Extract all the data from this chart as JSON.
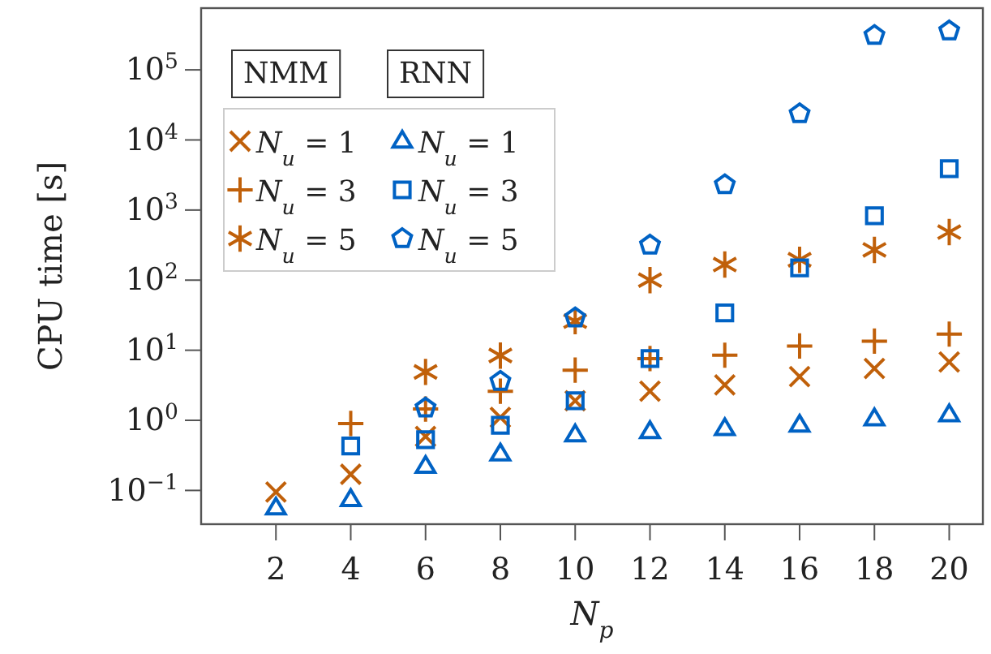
{
  "chart_data": {
    "type": "scatter",
    "xlabel": "N$_{p}$",
    "ylabel": "CPU time [s]",
    "log": "y",
    "legend": "top left",
    "grid": false,
    "xlim": [
      0,
      20.9
    ],
    "xticks": [
      2,
      4,
      6,
      8,
      10,
      12,
      14,
      16,
      18,
      20
    ],
    "ylim": [
      0.033,
      760000
    ],
    "yticks": [
      {
        "value": 0.1,
        "label": "10$^{−1}$"
      },
      {
        "value": 1,
        "label": "10$^{0}$"
      },
      {
        "value": 10,
        "label": "10$^{1}$"
      },
      {
        "value": 100,
        "label": "10$^{2}$"
      },
      {
        "value": 1000,
        "label": "10$^{3}$"
      },
      {
        "value": 10000,
        "label": "10$^{4}$"
      },
      {
        "value": 100000,
        "label": "10$^{5}$"
      }
    ],
    "annotations": [
      "NMM",
      "RNN"
    ],
    "series": [
      {
        "name": "N$_{u}$ = 1",
        "color": "#c0600a",
        "marker": "cross",
        "x": [
          2,
          4,
          6,
          8,
          10,
          12,
          14,
          16,
          18,
          20
        ],
        "values": [
          0.095,
          0.17,
          0.59,
          1.1,
          1.9,
          2.6,
          3.2,
          4.2,
          5.5,
          6.8
        ]
      },
      {
        "name": "N$_{u}$ = 3",
        "color": "#c0600a",
        "marker": "plus",
        "x": [
          4,
          6,
          8,
          10,
          12,
          14,
          16,
          18,
          20
        ],
        "values": [
          0.9,
          1.45,
          2.6,
          5.2,
          7.6,
          8.5,
          11.5,
          13.5,
          17
        ]
      },
      {
        "name": "N$_{u}$ = 5",
        "color": "#c0600a",
        "x": [
          6,
          8,
          10,
          12,
          14,
          16,
          18,
          20
        ],
        "values": [
          4.9,
          8.4,
          26,
          100,
          167,
          195,
          270,
          485
        ]
      },
      {
        "name": "N$_{u}$ = 1",
        "color": "#0062c4",
        "marker": "triangle",
        "x": [
          2,
          4,
          6,
          8,
          10,
          12,
          14,
          16,
          18,
          20
        ],
        "values": [
          0.056,
          0.074,
          0.22,
          0.33,
          0.62,
          0.69,
          0.76,
          0.85,
          1.05,
          1.2
        ]
      },
      {
        "name": "N$_{u}$ = 3",
        "color": "#0062c4",
        "marker": "square",
        "x": [
          4,
          6,
          8,
          10,
          12,
          14,
          16,
          18,
          20
        ],
        "values": [
          0.43,
          0.53,
          0.85,
          1.9,
          7.6,
          34,
          150,
          830,
          3900
        ]
      },
      {
        "name": "N$_{u}$ = 5",
        "color": "#0062c4",
        "x": [
          6,
          8,
          10,
          12,
          14,
          16,
          18,
          20
        ],
        "values": [
          1.5,
          3.6,
          29,
          316,
          2300,
          23700,
          310000,
          360000
        ]
      }
    ]
  }
}
